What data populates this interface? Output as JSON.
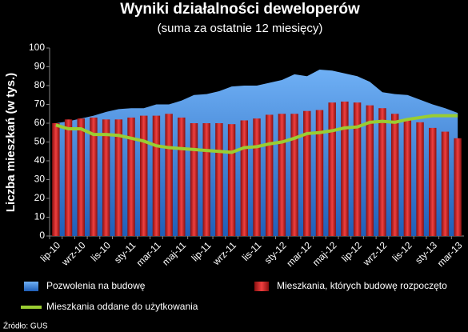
{
  "chart_data": {
    "type": "combo",
    "title": "Wyniki działalności deweloperów",
    "subtitle": "(suma za ostatnie 12 miesięcy)",
    "y_label": "Liczba mieszkań (w tys.)",
    "source": "Źródło: GUS",
    "categories": [
      "lip-10",
      null,
      "wrz-10",
      null,
      "lis-10",
      null,
      "sty-11",
      null,
      "mar-11",
      null,
      "maj-11",
      null,
      "lip-11",
      null,
      "wrz-11",
      null,
      "lis-11",
      null,
      "sty-12",
      null,
      "mar-12",
      null,
      "maj-12",
      null,
      "lip-12",
      null,
      "wrz-12",
      null,
      "lis-12",
      null,
      "sty-13",
      null,
      "mar-13"
    ],
    "series": [
      {
        "name": "Pozwolenia na budowę",
        "type": "area",
        "color": "#4a8fe0",
        "values": [
          60,
          61,
          62.5,
          64,
          66,
          67.5,
          68,
          68,
          70,
          70,
          72,
          75,
          75.5,
          77,
          79.5,
          80,
          80,
          81.5,
          83,
          86,
          85,
          88.5,
          88,
          86.5,
          85,
          82,
          76.5,
          75.5,
          75,
          72.5,
          70,
          68,
          65.5
        ]
      },
      {
        "name": "Mieszkania, których budowę rozpoczęto",
        "type": "bar",
        "color": "#d42a2a",
        "values": [
          60,
          62,
          62.5,
          63,
          62,
          62,
          63,
          64,
          64,
          65,
          63,
          60,
          60,
          60,
          59.5,
          61.5,
          62.5,
          64.5,
          65,
          65,
          66.5,
          67,
          71,
          71.5,
          71,
          69.5,
          68,
          65,
          61.5,
          60.5,
          57.5,
          55.5,
          52
        ]
      },
      {
        "name": "Mieszkania oddane do użytkowania",
        "type": "line",
        "color": "#9acd32",
        "values": [
          59,
          57,
          57,
          54,
          54,
          53.5,
          52,
          50.5,
          48,
          47,
          46.5,
          46,
          45.5,
          45,
          44.5,
          47,
          47.5,
          49,
          50,
          52,
          54.5,
          55,
          56,
          57.5,
          58,
          60.5,
          61,
          60.5,
          62,
          63,
          64,
          64,
          64
        ]
      }
    ],
    "ylim": [
      0,
      100
    ],
    "yticks": [
      0,
      10,
      20,
      30,
      40,
      50,
      60,
      70,
      80,
      90,
      100
    ],
    "grid": false
  }
}
